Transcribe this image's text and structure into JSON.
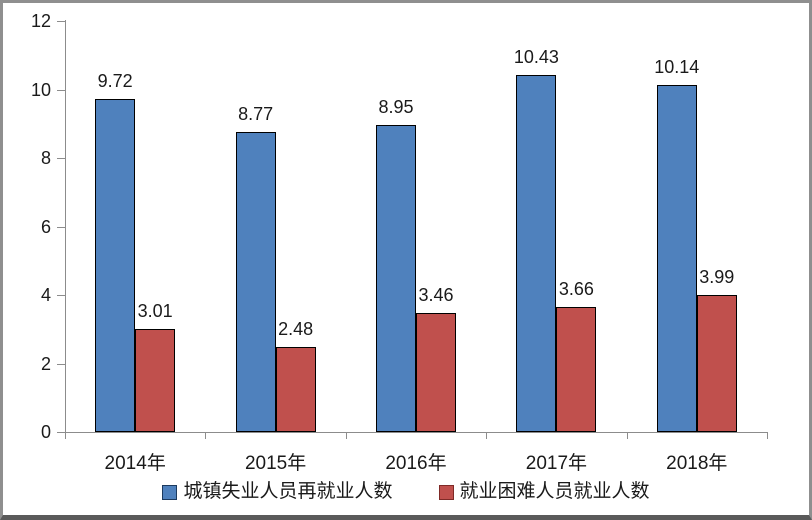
{
  "chart_data": {
    "type": "bar",
    "title": "",
    "xlabel": "",
    "ylabel": "",
    "categories": [
      "2014年",
      "2015年",
      "2016年",
      "2017年",
      "2018年"
    ],
    "series": [
      {
        "name": "城镇失业人员再就业人数",
        "values": [
          9.72,
          8.77,
          8.95,
          10.43,
          10.14
        ],
        "color": "#4F81BD",
        "border_color": "#000000",
        "swatch_border_color": "#1c3a5e"
      },
      {
        "name": "就业困难人员就业人数",
        "values": [
          3.01,
          2.48,
          3.46,
          3.66,
          3.99
        ],
        "color": "#C0504D",
        "border_color": "#000000",
        "swatch_border_color": "#7f2a27"
      }
    ],
    "ylim": [
      0,
      12
    ],
    "yticks": [
      0,
      2,
      4,
      6,
      8,
      10,
      12
    ],
    "grid": false,
    "data_labels": true,
    "legend_position": "bottom",
    "axis_color": "#8c8c8c",
    "text_color": "#1a1a1a"
  }
}
